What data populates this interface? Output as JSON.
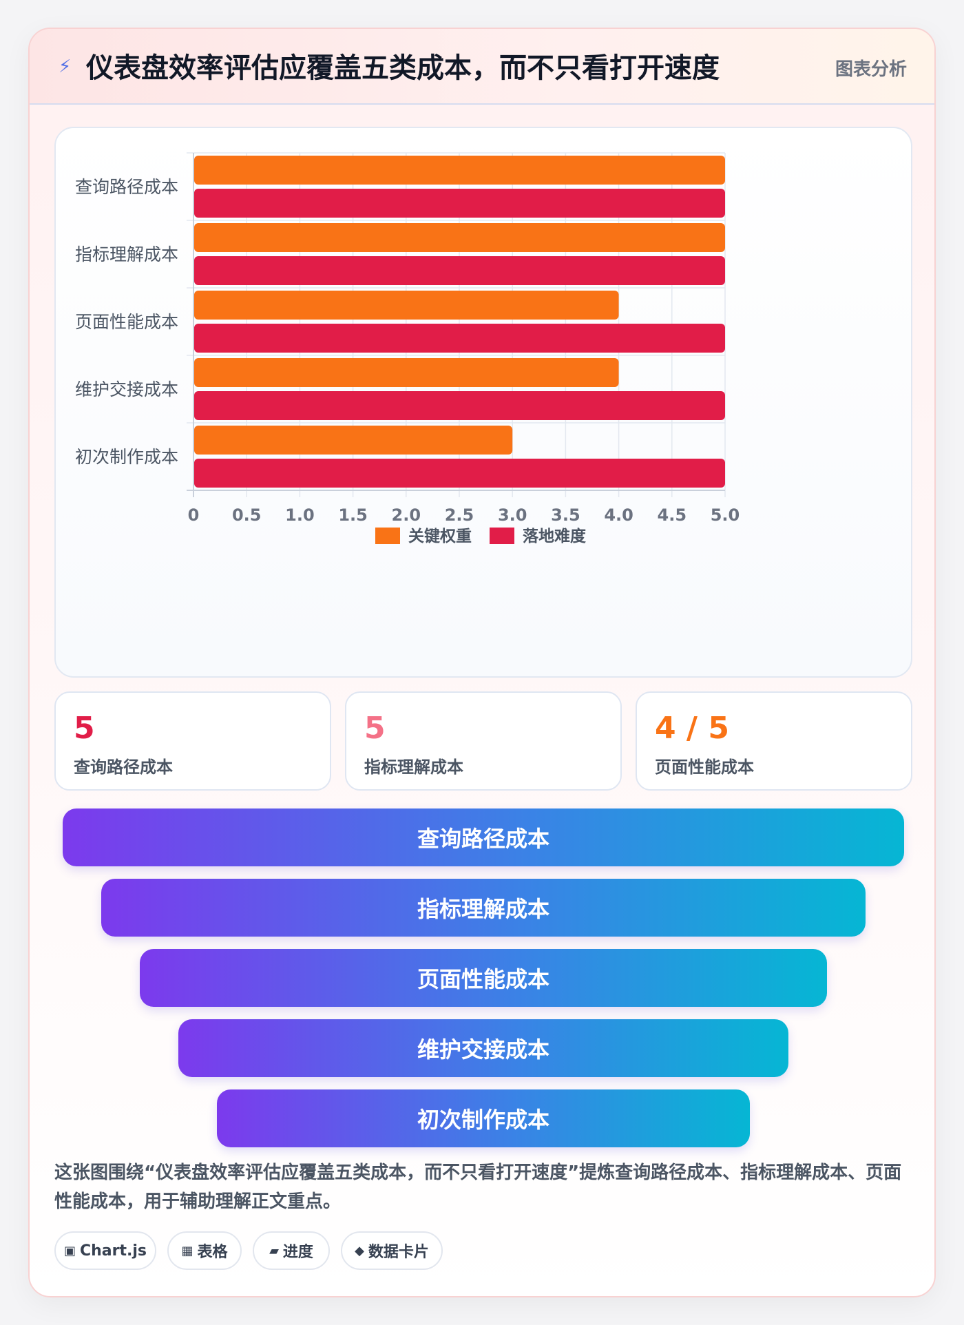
{
  "header": {
    "icon": "lightning-icon",
    "title": "仪表盘效率评估应覆盖五类成本，而不只看打开速度",
    "tag": "图表分析"
  },
  "chart_data": {
    "type": "bar",
    "orientation": "horizontal",
    "categories": [
      "查询路径成本",
      "指标理解成本",
      "页面性能成本",
      "维护交接成本",
      "初次制作成本"
    ],
    "series": [
      {
        "name": "关键权重",
        "color": "#f97316",
        "values": [
          5,
          5,
          4,
          4,
          3
        ]
      },
      {
        "name": "落地难度",
        "color": "#e11d48",
        "values": [
          5,
          5,
          5,
          5,
          5
        ]
      }
    ],
    "xlim": [
      0,
      5
    ],
    "xticks": [
      "0",
      "0.5",
      "1.0",
      "1.5",
      "2.0",
      "2.5",
      "3.0",
      "3.5",
      "4.0",
      "4.5",
      "5.0"
    ],
    "grid": true,
    "legend": "bottom"
  },
  "stats": [
    {
      "value": "5",
      "label": "查询路径成本",
      "color": "#e11d48"
    },
    {
      "value": "5",
      "label": "指标理解成本",
      "color": "#f47187"
    },
    {
      "value": "4 / 5",
      "label": "页面性能成本",
      "color": "#f97316"
    }
  ],
  "funnel": [
    "查询路径成本",
    "指标理解成本",
    "页面性能成本",
    "维护交接成本",
    "初次制作成本"
  ],
  "description": "这张图围绕“仪表盘效率评估应覆盖五类成本，而不只看打开速度”提炼查询路径成本、指标理解成本、页面性能成本，用于辅助理解正文重点。",
  "chips": [
    {
      "icon": "▣",
      "label": "Chart.js"
    },
    {
      "icon": "▦",
      "label": "表格"
    },
    {
      "icon": "▰",
      "label": "进度"
    },
    {
      "icon": "◆",
      "label": "数据卡片"
    }
  ]
}
